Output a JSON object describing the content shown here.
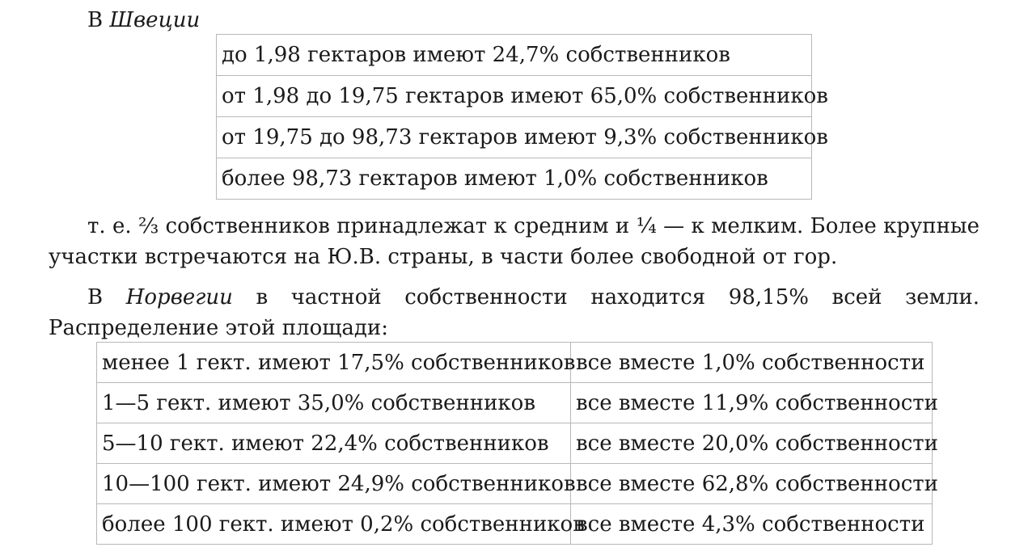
{
  "sweden": {
    "prefix": "В ",
    "country": "Швеции",
    "rows": [
      "до 1,98 гектаров имеют 24,7% собственников",
      "от 1,98 до 19,75 гектаров имеют 65,0% собственников",
      "от 19,75 до 98,73 гектаров имеют 9,3% собственников",
      "более 98,73 гектаров имеют 1,0% собственников"
    ]
  },
  "paragraph1": "т. е. ⅔ собственников принадлежат к средним и ¼ — к мелким. Более крупные участки встречаются на Ю.В. страны, в части более свободной от гор.",
  "norway": {
    "prefix": "В ",
    "country": "Норвегии",
    "text": " в частной собственности находится 98,15% всей земли. Распределение этой площади:",
    "rows": [
      [
        "менее 1 гект. имеют 17,5% собственников",
        "все вместе 1,0% собственности"
      ],
      [
        "1—5 гект. имеют 35,0% собственников",
        "все вместе 11,9% собственности"
      ],
      [
        "5—10 гект. имеют 22,4% собственников",
        "все вместе 20,0% собственности"
      ],
      [
        "10—100 гект. имеют 24,9% собственников",
        "все вместе 62,8% собственности"
      ],
      [
        "более 100 гект. имеют 0,2% собственников",
        "все вместе 4,3% собственности"
      ]
    ]
  }
}
